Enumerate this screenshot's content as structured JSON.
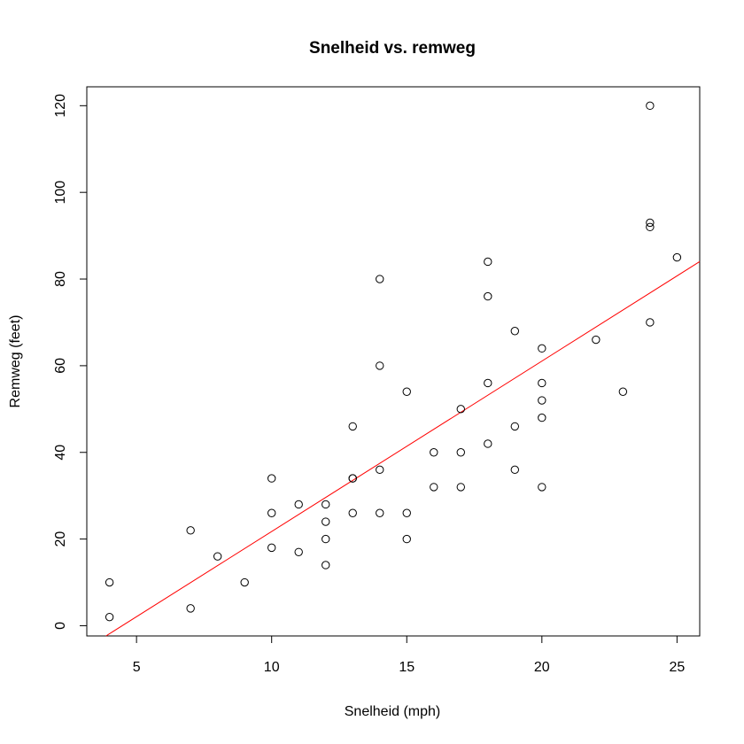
{
  "chart_data": {
    "type": "scatter",
    "title": "Snelheid vs. remweg",
    "xlabel": "Snelheid (mph)",
    "ylabel": "Remweg (feet)",
    "xlim": [
      3.16,
      25.84
    ],
    "ylim": [
      -2.36,
      124.36
    ],
    "xticks": [
      5,
      10,
      15,
      20,
      25
    ],
    "yticks": [
      0,
      20,
      40,
      60,
      80,
      100,
      120
    ],
    "grid": false,
    "points": [
      [
        4,
        2
      ],
      [
        4,
        10
      ],
      [
        7,
        4
      ],
      [
        7,
        22
      ],
      [
        8,
        16
      ],
      [
        9,
        10
      ],
      [
        10,
        18
      ],
      [
        10,
        26
      ],
      [
        10,
        34
      ],
      [
        11,
        17
      ],
      [
        11,
        28
      ],
      [
        12,
        14
      ],
      [
        12,
        20
      ],
      [
        12,
        24
      ],
      [
        12,
        28
      ],
      [
        13,
        26
      ],
      [
        13,
        34
      ],
      [
        13,
        34
      ],
      [
        13,
        46
      ],
      [
        14,
        26
      ],
      [
        14,
        36
      ],
      [
        14,
        60
      ],
      [
        14,
        80
      ],
      [
        15,
        20
      ],
      [
        15,
        26
      ],
      [
        15,
        54
      ],
      [
        16,
        32
      ],
      [
        16,
        40
      ],
      [
        17,
        32
      ],
      [
        17,
        40
      ],
      [
        17,
        50
      ],
      [
        18,
        42
      ],
      [
        18,
        56
      ],
      [
        18,
        76
      ],
      [
        18,
        84
      ],
      [
        19,
        36
      ],
      [
        19,
        46
      ],
      [
        19,
        68
      ],
      [
        20,
        32
      ],
      [
        20,
        48
      ],
      [
        20,
        52
      ],
      [
        20,
        56
      ],
      [
        20,
        64
      ],
      [
        22,
        66
      ],
      [
        23,
        54
      ],
      [
        24,
        70
      ],
      [
        24,
        92
      ],
      [
        24,
        93
      ],
      [
        24,
        120
      ],
      [
        25,
        85
      ]
    ],
    "regression_line": {
      "intercept": -17.579,
      "slope": 3.932,
      "color": "#ff0000"
    },
    "point_color": "#000000"
  }
}
